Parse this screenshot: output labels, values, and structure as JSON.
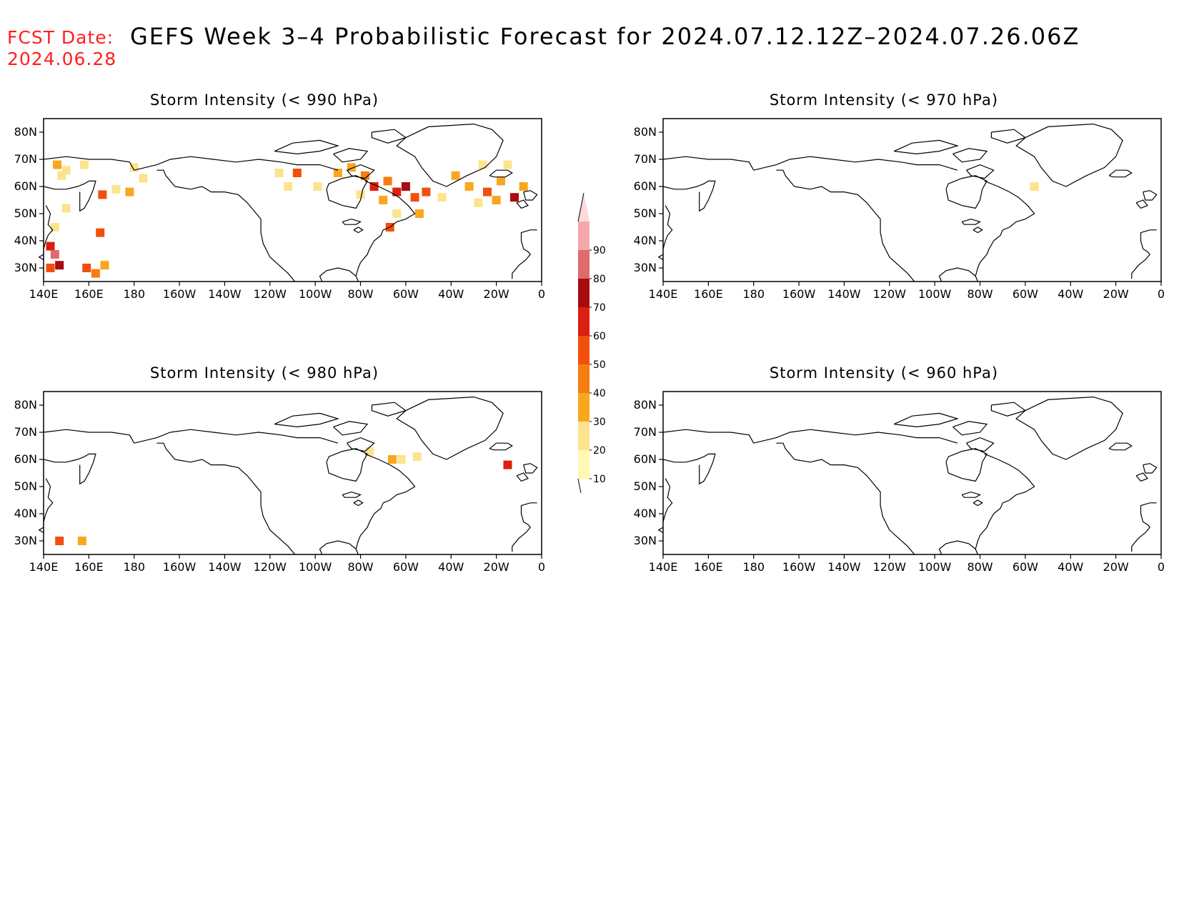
{
  "header": {
    "fcst_label": "FCST Date:",
    "fcst_date": "2024.06.28",
    "title": "GEFS Week 3–4 Probabilistic Forecast for 2024.07.12.12Z–2024.07.26.06Z"
  },
  "axes": {
    "lat_labels": [
      "80N",
      "70N",
      "60N",
      "50N",
      "40N",
      "30N"
    ],
    "lat_values": [
      80,
      70,
      60,
      50,
      40,
      30
    ],
    "lon_labels": [
      "140E",
      "160E",
      "180",
      "160W",
      "140W",
      "120W",
      "100W",
      "80W",
      "60W",
      "40W",
      "20W",
      "0"
    ],
    "lat_range": [
      25,
      85
    ],
    "lon_range": [
      140,
      360
    ]
  },
  "colorbar": {
    "ticks": [
      "10",
      "20",
      "30",
      "40",
      "50",
      "60",
      "70",
      "80",
      "90"
    ],
    "colors": [
      "#fff7b2",
      "#fce38d",
      "#f8a71f",
      "#f77d10",
      "#f14f0e",
      "#dc1f0f",
      "#a90b10",
      "#e06a6d",
      "#f5a8aa",
      "#ffd9db"
    ]
  },
  "panels": [
    {
      "id": "p990",
      "title": "Storm Intensity (< 990 hPa)",
      "cells": [
        {
          "lon": 146,
          "lat": 68,
          "p": 20
        },
        {
          "lon": 150,
          "lat": 66,
          "p": 15
        },
        {
          "lon": 148,
          "lat": 64,
          "p": 10
        },
        {
          "lon": 158,
          "lat": 68,
          "p": 15
        },
        {
          "lon": 180,
          "lat": 67,
          "p": 10
        },
        {
          "lon": 184,
          "lat": 63,
          "p": 15
        },
        {
          "lon": 172,
          "lat": 59,
          "p": 15
        },
        {
          "lon": 178,
          "lat": 58,
          "p": 20
        },
        {
          "lon": 166,
          "lat": 57,
          "p": 40
        },
        {
          "lon": 150,
          "lat": 52,
          "p": 10
        },
        {
          "lon": 145,
          "lat": 45,
          "p": 15
        },
        {
          "lon": 143,
          "lat": 38,
          "p": 55
        },
        {
          "lon": 145,
          "lat": 35,
          "p": 70
        },
        {
          "lon": 147,
          "lat": 31,
          "p": 60
        },
        {
          "lon": 143,
          "lat": 30,
          "p": 45
        },
        {
          "lon": 159,
          "lat": 30,
          "p": 40
        },
        {
          "lon": 163,
          "lat": 28,
          "p": 30
        },
        {
          "lon": 167,
          "lat": 31,
          "p": 20
        },
        {
          "lon": 165,
          "lat": 43,
          "p": 40
        },
        {
          "lon": 244,
          "lat": 65,
          "p": 15
        },
        {
          "lon": 252,
          "lat": 65,
          "p": 40
        },
        {
          "lon": 248,
          "lat": 60,
          "p": 10
        },
        {
          "lon": 261,
          "lat": 60,
          "p": 15
        },
        {
          "lon": 270,
          "lat": 65,
          "p": 20
        },
        {
          "lon": 276,
          "lat": 67,
          "p": 25
        },
        {
          "lon": 282,
          "lat": 64,
          "p": 30
        },
        {
          "lon": 286,
          "lat": 60,
          "p": 50
        },
        {
          "lon": 292,
          "lat": 62,
          "p": 35
        },
        {
          "lon": 296,
          "lat": 58,
          "p": 55
        },
        {
          "lon": 300,
          "lat": 60,
          "p": 60
        },
        {
          "lon": 304,
          "lat": 56,
          "p": 40
        },
        {
          "lon": 309,
          "lat": 58,
          "p": 45
        },
        {
          "lon": 290,
          "lat": 55,
          "p": 25
        },
        {
          "lon": 280,
          "lat": 57,
          "p": 15
        },
        {
          "lon": 293,
          "lat": 45,
          "p": 45
        },
        {
          "lon": 296,
          "lat": 50,
          "p": 15
        },
        {
          "lon": 306,
          "lat": 50,
          "p": 20
        },
        {
          "lon": 316,
          "lat": 56,
          "p": 15
        },
        {
          "lon": 322,
          "lat": 64,
          "p": 20
        },
        {
          "lon": 328,
          "lat": 60,
          "p": 25
        },
        {
          "lon": 336,
          "lat": 58,
          "p": 40
        },
        {
          "lon": 342,
          "lat": 62,
          "p": 20
        },
        {
          "lon": 348,
          "lat": 56,
          "p": 60
        },
        {
          "lon": 352,
          "lat": 60,
          "p": 25
        },
        {
          "lon": 340,
          "lat": 55,
          "p": 25
        },
        {
          "lon": 332,
          "lat": 54,
          "p": 15
        },
        {
          "lon": 334,
          "lat": 68,
          "p": 15
        },
        {
          "lon": 345,
          "lat": 68,
          "p": 10
        }
      ]
    },
    {
      "id": "p970",
      "title": "Storm Intensity (< 970 hPa)",
      "cells": [
        {
          "lon": 304,
          "lat": 60,
          "p": 15
        }
      ]
    },
    {
      "id": "p980",
      "title": "Storm Intensity (< 980 hPa)",
      "cells": [
        {
          "lon": 284,
          "lat": 63,
          "p": 15
        },
        {
          "lon": 294,
          "lat": 60,
          "p": 20
        },
        {
          "lon": 298,
          "lat": 60,
          "p": 15
        },
        {
          "lon": 305,
          "lat": 61,
          "p": 15
        },
        {
          "lon": 345,
          "lat": 58,
          "p": 55
        },
        {
          "lon": 147,
          "lat": 30,
          "p": 45
        },
        {
          "lon": 157,
          "lat": 30,
          "p": 20
        }
      ]
    },
    {
      "id": "p960",
      "title": "Storm Intensity (< 960 hPa)",
      "cells": []
    }
  ]
}
